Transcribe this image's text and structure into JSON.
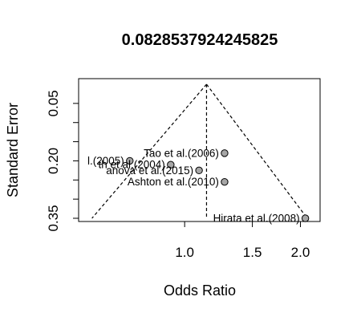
{
  "chart_data": {
    "type": "scatter",
    "subtype": "funnel",
    "title": "0.0828537924245825",
    "xlabel": "Odds Ratio",
    "ylabel": "Standard Error",
    "x_scale": "log",
    "y_reversed": true,
    "xlim": [
      0.53,
      2.25
    ],
    "ylim": [
      0.0,
      0.35
    ],
    "x_ticks": [
      {
        "value": 1.0,
        "label": "1.0"
      },
      {
        "value": 1.5,
        "label": "1.5"
      },
      {
        "value": 2.0,
        "label": "2.0"
      }
    ],
    "y_ticks": [
      {
        "value": 0.05,
        "label": "0.05"
      },
      {
        "value": 0.1,
        "label": ""
      },
      {
        "value": 0.15,
        "label": ""
      },
      {
        "value": 0.2,
        "label": "0.20"
      },
      {
        "value": 0.25,
        "label": ""
      },
      {
        "value": 0.3,
        "label": ""
      },
      {
        "value": 0.35,
        "label": "0.35"
      }
    ],
    "summary_estimate": 1.14,
    "funnel_z": 1.96,
    "points": [
      {
        "label": "Tao et al.(2006)",
        "x": 1.27,
        "y": 0.18
      },
      {
        "label": "l.(2005)",
        "x": 0.72,
        "y": 0.2
      },
      {
        "label": "th et al.(2004)",
        "x": 0.92,
        "y": 0.21
      },
      {
        "label": "anova et al.(2015)",
        "x": 1.09,
        "y": 0.225
      },
      {
        "label": "Ashton et al.(2010)",
        "x": 1.27,
        "y": 0.255
      },
      {
        "label": "Hirata et al.(2008)",
        "x": 2.06,
        "y": 0.35
      }
    ],
    "colors": {
      "point_fill": "#a6a6a6",
      "line": "#000000"
    },
    "grid": false,
    "legend": "none"
  }
}
